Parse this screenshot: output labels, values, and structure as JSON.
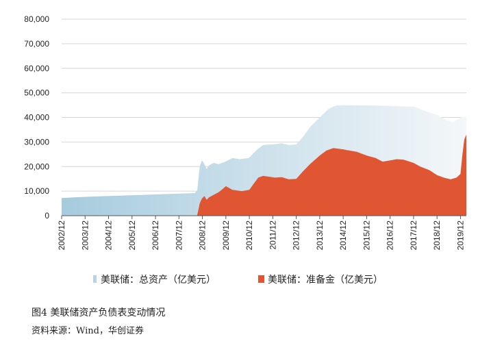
{
  "chart_data": {
    "type": "area",
    "title": "",
    "xlabel": "",
    "ylabel": "",
    "ylim": [
      0,
      80000
    ],
    "yticks": [
      "0",
      "10,000",
      "20,000",
      "30,000",
      "40,000",
      "50,000",
      "60,000",
      "70,000",
      "80,000"
    ],
    "ytick_values": [
      0,
      10000,
      20000,
      30000,
      40000,
      50000,
      60000,
      70000,
      80000
    ],
    "xlim": [
      2002.917,
      2020.167
    ],
    "xticks": [
      "2002/12",
      "2003/12",
      "2004/12",
      "2005/12",
      "2006/12",
      "2007/12",
      "2008/12",
      "2009/12",
      "2010/12",
      "2011/12",
      "2012/12",
      "2013/12",
      "2014/12",
      "2015/12",
      "2016/12",
      "2017/12",
      "2018/12",
      "2019/12"
    ],
    "xtick_values": [
      2002.917,
      2003.917,
      2004.917,
      2005.917,
      2006.917,
      2007.917,
      2008.917,
      2009.917,
      2010.917,
      2011.917,
      2012.917,
      2013.917,
      2014.917,
      2015.917,
      2016.917,
      2017.917,
      2018.917,
      2019.917
    ],
    "grid": "horizontal",
    "legend_position": "bottom",
    "series": [
      {
        "name": "美联储：总资产（亿美元）",
        "color_start": "#a6cbde",
        "color_end": "#f4f7f9",
        "points": [
          [
            2002.917,
            7200
          ],
          [
            2003.5,
            7500
          ],
          [
            2004.5,
            7900
          ],
          [
            2005.5,
            8200
          ],
          [
            2006.5,
            8500
          ],
          [
            2007.5,
            8850
          ],
          [
            2008.6,
            9200
          ],
          [
            2008.7,
            10500
          ],
          [
            2008.75,
            15000
          ],
          [
            2008.8,
            20000
          ],
          [
            2008.9,
            22500
          ],
          [
            2009.0,
            21000
          ],
          [
            2009.1,
            19000
          ],
          [
            2009.2,
            20500
          ],
          [
            2009.4,
            21500
          ],
          [
            2009.6,
            21000
          ],
          [
            2009.9,
            22000
          ],
          [
            2010.2,
            23500
          ],
          [
            2010.5,
            23000
          ],
          [
            2010.9,
            23500
          ],
          [
            2011.2,
            26500
          ],
          [
            2011.5,
            28800
          ],
          [
            2011.9,
            29000
          ],
          [
            2012.3,
            29500
          ],
          [
            2012.6,
            28800
          ],
          [
            2012.917,
            29000
          ],
          [
            2013.2,
            32000
          ],
          [
            2013.5,
            36000
          ],
          [
            2013.917,
            40000
          ],
          [
            2014.3,
            43500
          ],
          [
            2014.6,
            44800
          ],
          [
            2014.917,
            45000
          ],
          [
            2015.5,
            44900
          ],
          [
            2016.5,
            44800
          ],
          [
            2017.5,
            44500
          ],
          [
            2017.917,
            44400
          ],
          [
            2018.3,
            43000
          ],
          [
            2018.917,
            41000
          ],
          [
            2019.3,
            39000
          ],
          [
            2019.6,
            38000
          ],
          [
            2019.917,
            40000
          ],
          [
            2020.167,
            40500
          ]
        ]
      },
      {
        "name": "美联储：准备金（亿美元）",
        "color": "#e05632",
        "points": [
          [
            2008.7,
            500
          ],
          [
            2008.75,
            2500
          ],
          [
            2008.8,
            5000
          ],
          [
            2008.9,
            7000
          ],
          [
            2009.0,
            8000
          ],
          [
            2009.1,
            6500
          ],
          [
            2009.2,
            7500
          ],
          [
            2009.4,
            8500
          ],
          [
            2009.6,
            9500
          ],
          [
            2009.8,
            11000
          ],
          [
            2009.917,
            12000
          ],
          [
            2010.2,
            10500
          ],
          [
            2010.6,
            10000
          ],
          [
            2010.917,
            10500
          ],
          [
            2011.1,
            13000
          ],
          [
            2011.3,
            15500
          ],
          [
            2011.5,
            16200
          ],
          [
            2011.8,
            15800
          ],
          [
            2012.0,
            15500
          ],
          [
            2012.3,
            15700
          ],
          [
            2012.6,
            14800
          ],
          [
            2012.917,
            15000
          ],
          [
            2013.2,
            18000
          ],
          [
            2013.5,
            21000
          ],
          [
            2013.917,
            24500
          ],
          [
            2014.2,
            26500
          ],
          [
            2014.5,
            27500
          ],
          [
            2014.917,
            27000
          ],
          [
            2015.2,
            26500
          ],
          [
            2015.5,
            26000
          ],
          [
            2015.917,
            24500
          ],
          [
            2016.3,
            23500
          ],
          [
            2016.6,
            22000
          ],
          [
            2016.917,
            22500
          ],
          [
            2017.2,
            23000
          ],
          [
            2017.5,
            22800
          ],
          [
            2017.917,
            21500
          ],
          [
            2018.2,
            20000
          ],
          [
            2018.6,
            18500
          ],
          [
            2018.917,
            16500
          ],
          [
            2019.2,
            15500
          ],
          [
            2019.5,
            14800
          ],
          [
            2019.75,
            15500
          ],
          [
            2019.917,
            17000
          ],
          [
            2020.0,
            25000
          ],
          [
            2020.08,
            31000
          ],
          [
            2020.167,
            33000
          ]
        ]
      }
    ]
  },
  "legend": {
    "total_assets": "美联储：总资产（亿美元）",
    "reserves": "美联储：准备金（亿美元）"
  },
  "caption": {
    "title": "图4  美联储资产负债表变动情况",
    "source": "资料来源：Wind，华创证券"
  }
}
